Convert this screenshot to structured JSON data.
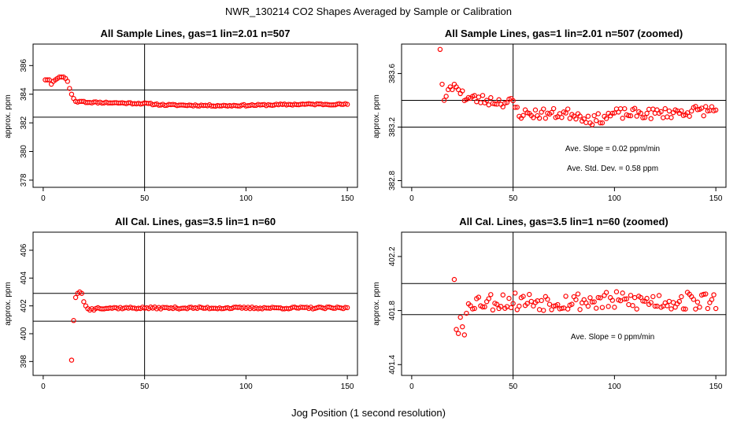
{
  "figure": {
    "title": "NWR_130214  CO2 Shapes Averaged by Sample or Calibration",
    "xlabel": "Jog Position (1 second resolution)",
    "marker_color": "#ff0000"
  },
  "chart_data": [
    {
      "type": "scatter",
      "title": "All Sample Lines, gas=1 lin=2.01 n=507",
      "ylabel": "approx. ppm",
      "xlim": [
        -5,
        155
      ],
      "ylim": [
        377.5,
        387.5
      ],
      "xticks": [
        0,
        50,
        100,
        150
      ],
      "yticks": [
        378,
        380,
        382,
        384,
        386
      ],
      "yticklabels": [
        "378",
        "380",
        "382",
        "384",
        "386"
      ],
      "hlines": [
        382.4,
        384.3
      ],
      "vline": 50,
      "annotations": [],
      "series": [
        {
          "kind": "seg",
          "points": [
            [
              1,
              385
            ],
            [
              2,
              385
            ],
            [
              3,
              385
            ],
            [
              4,
              384.7
            ],
            [
              5,
              384.9
            ],
            [
              6,
              385
            ],
            [
              7,
              385.1
            ],
            [
              8,
              385.2
            ],
            [
              9,
              385.2
            ],
            [
              10,
              385.2
            ],
            [
              11,
              385.1
            ],
            [
              12,
              384.9
            ],
            [
              13,
              384.4
            ],
            [
              14,
              384
            ],
            [
              15,
              383.7
            ],
            [
              16,
              383.5
            ],
            [
              17,
              383.45
            ],
            [
              18,
              383.5
            ],
            [
              19,
              383.5
            ],
            [
              20,
              383.5
            ]
          ],
          "from": 20,
          "to": 150,
          "values": [
            [
              20,
              383.45
            ],
            [
              50,
              383.35
            ],
            [
              60,
              383.25
            ],
            [
              90,
              383.2
            ],
            [
              130,
              383.3
            ],
            [
              150,
              383.3
            ]
          ],
          "noise": 0.05,
          "seed": 11
        }
      ]
    },
    {
      "type": "scatter",
      "title": "All Sample Lines, gas=1 lin=2.01 n=507 (zoomed)",
      "ylabel": "approx. ppm",
      "xlim": [
        -5,
        155
      ],
      "ylim": [
        382.75,
        383.82
      ],
      "xticks": [
        0,
        50,
        100,
        150
      ],
      "yticks": [
        382.8,
        383.2,
        383.6
      ],
      "yticklabels": [
        "382.8",
        "383.2",
        "383.6"
      ],
      "hlines": [
        383.4,
        383.2
      ],
      "vline": 50,
      "annotations": [
        "Ave. Slope =  0.02  ppm/min",
        "Ave. Std. Dev. =  0.58  ppm"
      ],
      "series": [
        {
          "kind": "seg",
          "points": [
            [
              14,
              383.78
            ],
            [
              15,
              383.52
            ],
            [
              16,
              383.4
            ],
            [
              17,
              383.43
            ],
            [
              18,
              383.48
            ],
            [
              19,
              383.5
            ],
            [
              20,
              383.48
            ],
            [
              21,
              383.52
            ],
            [
              22,
              383.5
            ],
            [
              23,
              383.48
            ],
            [
              24,
              383.45
            ],
            [
              25,
              383.47
            ]
          ],
          "from": 25,
          "to": 150,
          "values": [
            [
              25,
              383.42
            ],
            [
              50,
              383.38
            ],
            [
              53,
              383.3
            ],
            [
              80,
              383.3
            ],
            [
              90,
              383.25
            ],
            [
              100,
              383.3
            ],
            [
              120,
              383.3
            ],
            [
              150,
              383.33
            ]
          ],
          "noise": 0.04,
          "seed": 23
        }
      ]
    },
    {
      "type": "scatter",
      "title": "All Cal. Lines, gas=3.5 lin=1 n=60",
      "ylabel": "approx. ppm",
      "xlim": [
        -5,
        155
      ],
      "ylim": [
        397,
        407.3
      ],
      "xticks": [
        0,
        50,
        100,
        150
      ],
      "yticks": [
        398,
        400,
        402,
        404,
        406
      ],
      "yticklabels": [
        "398",
        "400",
        "402",
        "404",
        "406"
      ],
      "hlines": [
        402.9,
        400.9
      ],
      "vline": 50,
      "annotations": [],
      "series": [
        {
          "kind": "seg",
          "points": [
            [
              14,
              398.1
            ],
            [
              15,
              400.95
            ],
            [
              16,
              402.6
            ],
            [
              17,
              402.9
            ],
            [
              18,
              403
            ],
            [
              19,
              402.9
            ],
            [
              20,
              402.3
            ],
            [
              21,
              402
            ],
            [
              22,
              401.8
            ],
            [
              23,
              401.7
            ],
            [
              24,
              401.8
            ],
            [
              25,
              401.7
            ]
          ],
          "from": 25,
          "to": 150,
          "values": [
            [
              25,
              401.85
            ],
            [
              150,
              401.85
            ]
          ],
          "noise": 0.07,
          "seed": 37
        }
      ]
    },
    {
      "type": "scatter",
      "title": "All Cal. Lines, gas=3.5 lin=1 n=60 (zoomed)",
      "ylabel": "approx. ppm",
      "xlim": [
        -5,
        155
      ],
      "ylim": [
        401.32,
        402.38
      ],
      "xticks": [
        0,
        50,
        100,
        150
      ],
      "yticks": [
        401.4,
        401.8,
        402.2
      ],
      "yticklabels": [
        "401.4",
        "401.8",
        "402.2"
      ],
      "hlines": [
        402.0,
        401.77
      ],
      "vline": 50,
      "annotations": [
        "Ave. Slope =  0  ppm/min"
      ],
      "series": [
        {
          "kind": "seg",
          "points": [
            [
              21,
              402.03
            ],
            [
              22,
              401.66
            ],
            [
              23,
              401.63
            ],
            [
              24,
              401.75
            ],
            [
              25,
              401.68
            ],
            [
              26,
              401.62
            ],
            [
              27,
              401.78
            ],
            [
              28,
              401.85
            ]
          ],
          "from": 28,
          "to": 150,
          "values": [
            [
              28,
              401.87
            ],
            [
              150,
              401.87
            ]
          ],
          "noise": 0.07,
          "seed": 53
        }
      ]
    }
  ]
}
